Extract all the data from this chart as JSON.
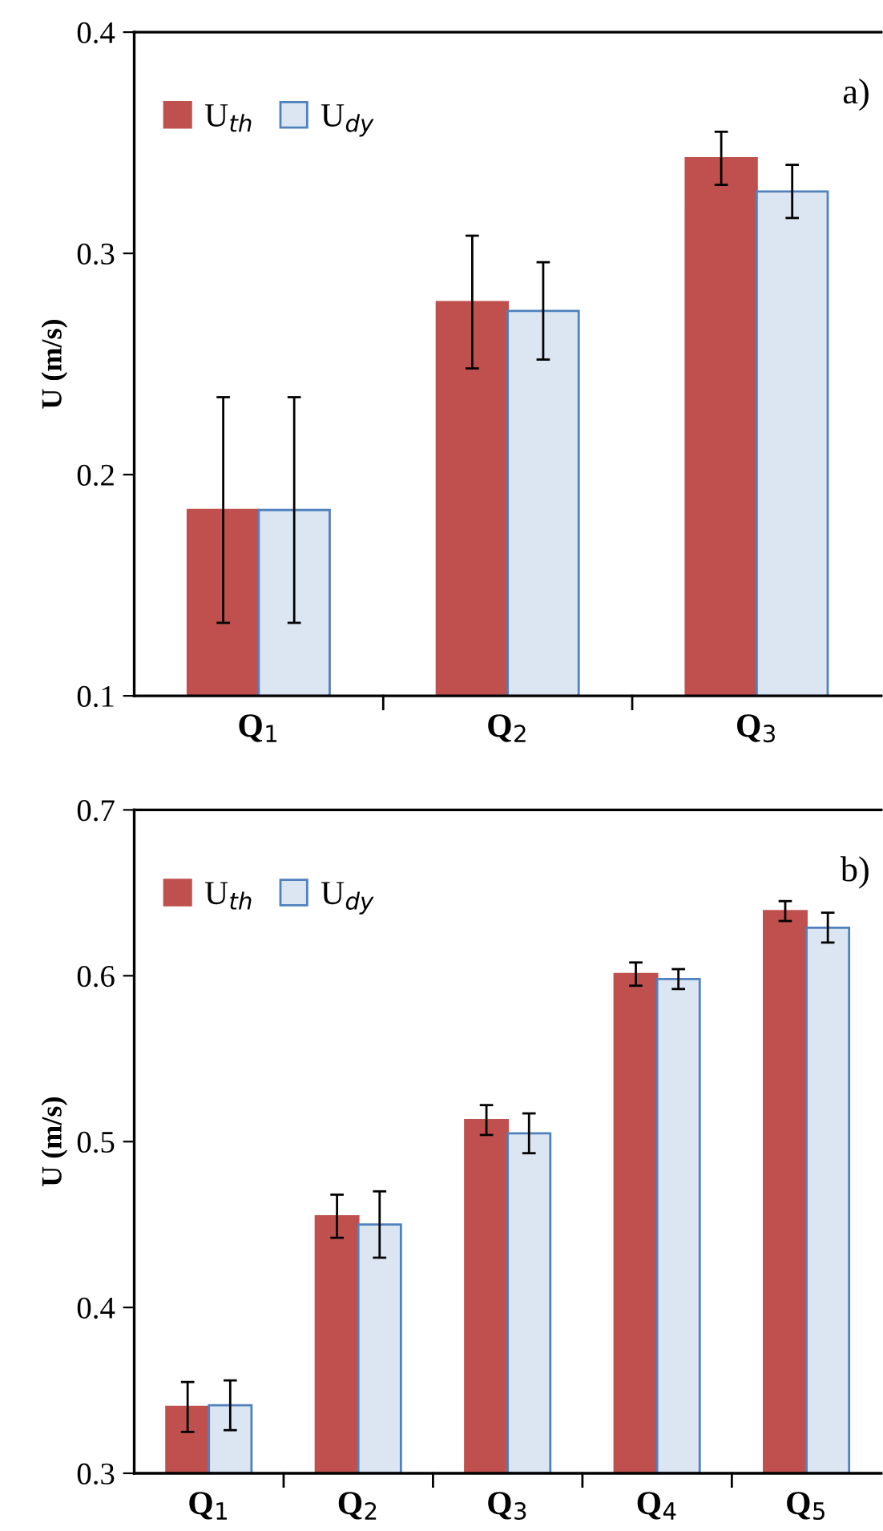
{
  "chart_data": [
    {
      "type": "bar",
      "ylabel": "U (m/s)",
      "categories": [
        "Q$_{1}$",
        "Q$_{2}$",
        "Q$_{3}$"
      ],
      "ylim": [
        0.1,
        0.4
      ],
      "yticks": [
        0.1,
        0.2,
        0.3,
        0.4
      ],
      "grid": false,
      "legend": "top left",
      "annotations": [
        "a)"
      ],
      "series": [
        {
          "name": "U$_{th}$",
          "color": "#c0504d",
          "values": [
            0.184,
            0.278,
            0.343
          ],
          "errors": [
            0.051,
            0.03,
            0.012
          ]
        },
        {
          "name": "U$_{dy}$",
          "color": "#dce6f2",
          "values": [
            0.184,
            0.274,
            0.328
          ],
          "errors": [
            0.051,
            0.022,
            0.012
          ]
        }
      ]
    },
    {
      "type": "bar",
      "ylabel": "U (m/s)",
      "categories": [
        "Q$_{1}$",
        "Q$_{2}$",
        "Q$_{3}$",
        "Q$_{4}$",
        "Q$_{5}$"
      ],
      "ylim": [
        0.3,
        0.7
      ],
      "yticks": [
        0.3,
        0.4,
        0.5,
        0.6,
        0.7
      ],
      "grid": false,
      "legend": "top left",
      "annotations": [
        "b)"
      ],
      "series": [
        {
          "name": "U$_{th}$",
          "color": "#c0504d",
          "values": [
            0.34,
            0.455,
            0.513,
            0.601,
            0.639
          ],
          "errors": [
            0.015,
            0.013,
            0.009,
            0.007,
            0.006
          ]
        },
        {
          "name": "U$_{dy}$",
          "color": "#dce6f2",
          "values": [
            0.341,
            0.45,
            0.505,
            0.598,
            0.629
          ],
          "errors": [
            0.015,
            0.02,
            0.012,
            0.006,
            0.009
          ]
        }
      ]
    }
  ]
}
